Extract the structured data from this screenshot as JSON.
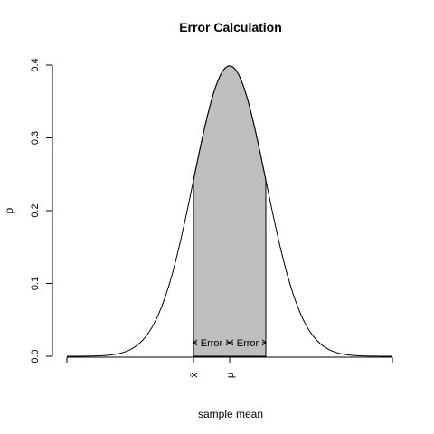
{
  "chart_data": {
    "type": "area",
    "title": "Error Calculation",
    "xlabel": "sample mean",
    "ylabel": "p",
    "ylim": [
      0,
      0.4
    ],
    "xlim": [
      -4.5,
      4.5
    ],
    "y_ticks": [
      "0.0",
      "0.1",
      "0.2",
      "0.3",
      "0.4"
    ],
    "x_ticks": [
      {
        "x": -1,
        "label": "x̄"
      },
      {
        "x": 0,
        "label": "μ"
      }
    ],
    "curve": {
      "distribution": "normal",
      "mean": 0,
      "sd": 1
    },
    "shaded_region": {
      "from": -1,
      "to": 1,
      "color": "#bebebe"
    },
    "annotations": [
      {
        "label": "Error",
        "from": -1,
        "to": 0,
        "y": 0.02
      },
      {
        "label": "Error",
        "from": 0,
        "to": 1,
        "y": 0.02
      }
    ]
  }
}
